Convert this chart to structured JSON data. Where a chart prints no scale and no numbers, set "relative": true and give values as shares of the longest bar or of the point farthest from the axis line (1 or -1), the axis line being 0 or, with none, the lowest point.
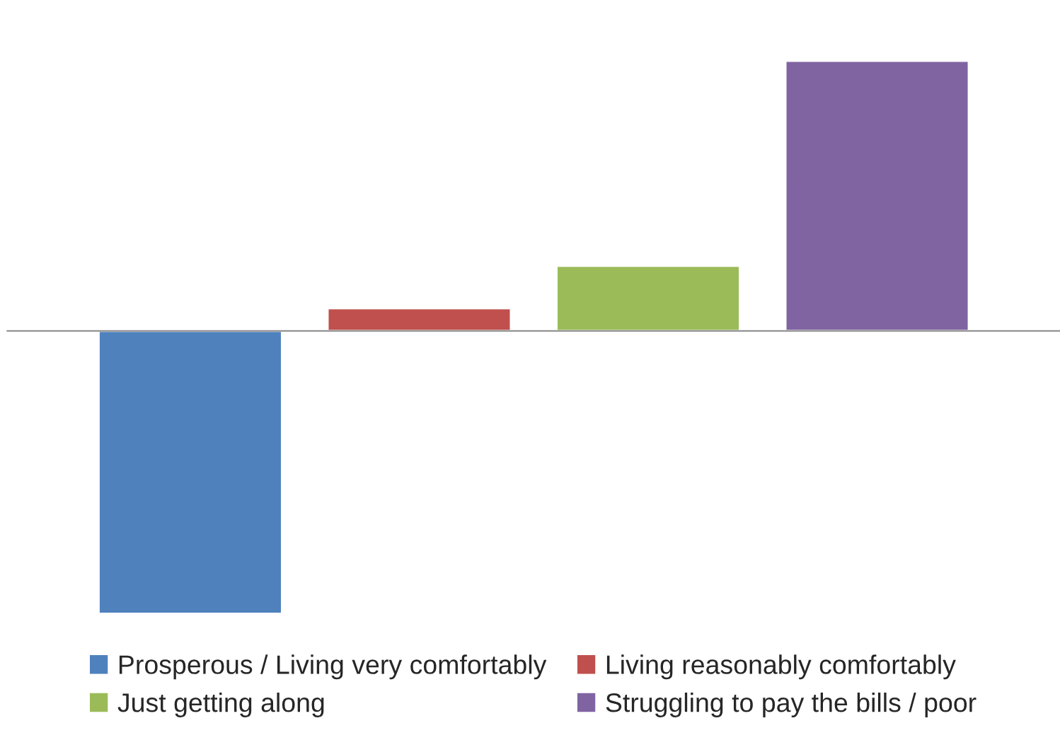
{
  "chart_data": {
    "type": "bar",
    "relative": true,
    "categories": [
      null
    ],
    "series": [
      {
        "name": "Prosperous / Living very comfortably",
        "color": "#4f81bd",
        "values": [
          -1
        ]
      },
      {
        "name": "Living reasonably comfortably",
        "color": "#c0504d",
        "values": [
          0.08
        ]
      },
      {
        "name": "Just getting along",
        "color": "#9bbb59",
        "values": [
          0.23
        ]
      },
      {
        "name": "Struggling to pay the bills / poor",
        "color": "#8064a2",
        "values": [
          0.955
        ]
      }
    ],
    "legend": "bottom",
    "grid": false
  }
}
